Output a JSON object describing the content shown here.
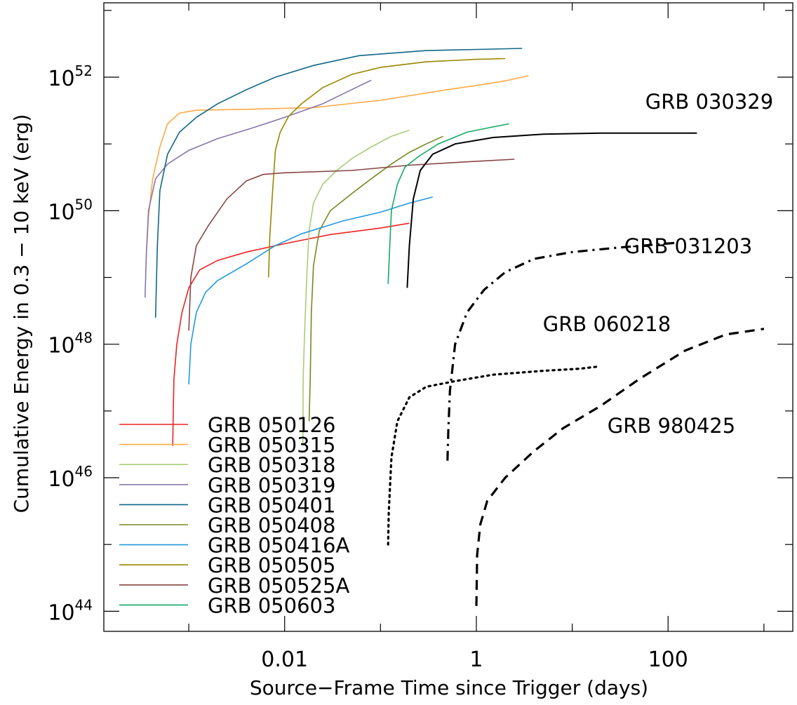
{
  "chart_data": {
    "type": "line",
    "xlabel": "Source−Frame Time since Trigger (days)",
    "ylabel": "Cumulative Energy in 0.3 − 10 keV (erg)",
    "x_scale": "log",
    "y_scale": "log",
    "xlim": [
      0.00013,
      2000
    ],
    "ylim": [
      5e+43,
      1.3e+53
    ],
    "x_tick_labels": [
      {
        "value": 0.01,
        "label": "0.01"
      },
      {
        "value": 1,
        "label": "1"
      },
      {
        "value": 100,
        "label": "100"
      }
    ],
    "y_tick_labels": [
      {
        "value": 1e+52,
        "base": "10",
        "exp": "52"
      },
      {
        "value": 1e+50,
        "base": "10",
        "exp": "50"
      },
      {
        "value": 1e+48,
        "base": "10",
        "exp": "48"
      },
      {
        "value": 1e+46,
        "base": "10",
        "exp": "46"
      },
      {
        "value": 1e+44,
        "base": "10",
        "exp": "44"
      }
    ],
    "legend_placement": "bottom-left",
    "series": [
      {
        "name": "GRB 050126",
        "color": "#ee2222",
        "style": "solid",
        "in_legend": true,
        "points": [
          [
            0.00068,
            3e+46
          ],
          [
            0.00069,
            1e+47
          ],
          [
            0.0007,
            3e+47
          ],
          [
            0.00075,
            1e+48
          ],
          [
            0.00085,
            3e+48
          ],
          [
            0.001,
            7e+48
          ],
          [
            0.0013,
            1.3e+49
          ],
          [
            0.002,
            1.8e+49
          ],
          [
            0.004,
            2.4e+49
          ],
          [
            0.01,
            3.2e+49
          ],
          [
            0.03,
            4.4e+49
          ],
          [
            0.1,
            5.5e+49
          ],
          [
            0.2,
            6.5e+49
          ]
        ]
      },
      {
        "name": "GRB 050315",
        "color": "#ffaa44",
        "style": "solid",
        "in_legend": true,
        "points": [
          [
            0.00036,
            2e+49
          ],
          [
            0.00038,
            8e+49
          ],
          [
            0.00042,
            3e+50
          ],
          [
            0.0005,
            9e+50
          ],
          [
            0.0006,
            2e+51
          ],
          [
            0.0008,
            2.9e+51
          ],
          [
            0.0012,
            3.2e+51
          ],
          [
            0.004,
            3.3e+51
          ],
          [
            0.02,
            3.5e+51
          ],
          [
            0.1,
            4.5e+51
          ],
          [
            0.5,
            6.5e+51
          ],
          [
            1,
            7.5e+51
          ],
          [
            2,
            8.8e+51
          ],
          [
            3.5,
            1.05e+52
          ]
        ]
      },
      {
        "name": "GRB 050318",
        "color": "#aacc77",
        "style": "solid",
        "in_legend": true,
        "points": [
          [
            0.0155,
            3e+46
          ],
          [
            0.0156,
            3e+47
          ],
          [
            0.016,
            1e+48
          ],
          [
            0.017,
            1e+49
          ],
          [
            0.018,
            5e+49
          ],
          [
            0.02,
            1.3e+50
          ],
          [
            0.025,
            2.5e+50
          ],
          [
            0.035,
            4e+50
          ],
          [
            0.05,
            6e+50
          ],
          [
            0.08,
            9e+50
          ],
          [
            0.13,
            1.3e+51
          ],
          [
            0.2,
            1.6e+51
          ]
        ]
      },
      {
        "name": "GRB 050319",
        "color": "#8877aa",
        "style": "solid",
        "in_legend": true,
        "points": [
          [
            0.00035,
            5e+48
          ],
          [
            0.00036,
            2e+49
          ],
          [
            0.00038,
            1e+50
          ],
          [
            0.00045,
            3e+50
          ],
          [
            0.0006,
            5e+50
          ],
          [
            0.001,
            8e+50
          ],
          [
            0.002,
            1.2e+51
          ],
          [
            0.005,
            1.8e+51
          ],
          [
            0.01,
            2.5e+51
          ],
          [
            0.025,
            4e+51
          ],
          [
            0.05,
            6.5e+51
          ],
          [
            0.08,
            9e+51
          ]
        ]
      },
      {
        "name": "GRB 050401",
        "color": "#116688",
        "style": "solid",
        "in_legend": true,
        "points": [
          [
            0.00045,
            2.5e+48
          ],
          [
            0.00047,
            3e+49
          ],
          [
            0.0005,
            2e+50
          ],
          [
            0.0006,
            7e+50
          ],
          [
            0.0008,
            1.5e+51
          ],
          [
            0.0012,
            2.5e+51
          ],
          [
            0.002,
            4e+51
          ],
          [
            0.004,
            6.5e+51
          ],
          [
            0.008,
            1e+52
          ],
          [
            0.02,
            1.5e+52
          ],
          [
            0.06,
            2.1e+52
          ],
          [
            0.3,
            2.5e+52
          ],
          [
            1,
            2.6e+52
          ],
          [
            3,
            2.7e+52
          ]
        ]
      },
      {
        "name": "GRB 050408",
        "color": "#778822",
        "style": "solid",
        "in_legend": true,
        "points": [
          [
            0.018,
            7e+46
          ],
          [
            0.0185,
            3e+47
          ],
          [
            0.019,
            3e+48
          ],
          [
            0.02,
            1.5e+49
          ],
          [
            0.023,
            5e+49
          ],
          [
            0.03,
            1e+50
          ],
          [
            0.05,
            1.8e+50
          ],
          [
            0.08,
            3e+50
          ],
          [
            0.13,
            5e+50
          ],
          [
            0.2,
            7.5e+50
          ],
          [
            0.3,
            1e+51
          ],
          [
            0.45,
            1.3e+51
          ]
        ]
      },
      {
        "name": "GRB 050416A",
        "color": "#2299dd",
        "style": "solid",
        "in_legend": true,
        "points": [
          [
            0.001,
            2.5e+47
          ],
          [
            0.00105,
            1e+48
          ],
          [
            0.0012,
            3e+48
          ],
          [
            0.0015,
            6e+48
          ],
          [
            0.002,
            9e+48
          ],
          [
            0.004,
            1.6e+49
          ],
          [
            0.008,
            3e+49
          ],
          [
            0.015,
            4.5e+49
          ],
          [
            0.04,
            7e+49
          ],
          [
            0.1,
            9.5e+49
          ],
          [
            0.2,
            1.3e+50
          ],
          [
            0.35,
            1.6e+50
          ]
        ]
      },
      {
        "name": "GRB 050505",
        "color": "#998800",
        "style": "solid",
        "in_legend": true,
        "points": [
          [
            0.0068,
            1e+49
          ],
          [
            0.007,
            4e+49
          ],
          [
            0.0075,
            2e+50
          ],
          [
            0.008,
            8e+50
          ],
          [
            0.009,
            1.5e+51
          ],
          [
            0.011,
            2.6e+51
          ],
          [
            0.015,
            4e+51
          ],
          [
            0.025,
            7e+51
          ],
          [
            0.05,
            1.1e+52
          ],
          [
            0.1,
            1.4e+52
          ],
          [
            0.3,
            1.7e+52
          ],
          [
            1,
            1.85e+52
          ],
          [
            2,
            1.9e+52
          ]
        ]
      },
      {
        "name": "GRB 050525A",
        "color": "#884444",
        "style": "solid",
        "in_legend": true,
        "points": [
          [
            0.001,
            1.6e+48
          ],
          [
            0.00105,
            1e+49
          ],
          [
            0.0012,
            3e+49
          ],
          [
            0.0016,
            6e+49
          ],
          [
            0.0025,
            1.5e+50
          ],
          [
            0.004,
            2.8e+50
          ],
          [
            0.006,
            3.5e+50
          ],
          [
            0.01,
            3.7e+50
          ],
          [
            0.05,
            4e+50
          ],
          [
            0.2,
            4.8e+50
          ],
          [
            1,
            5.5e+50
          ],
          [
            2.5,
            5.9e+50
          ]
        ]
      },
      {
        "name": "GRB 050603",
        "color": "#11aa66",
        "style": "solid",
        "in_legend": true,
        "points": [
          [
            0.12,
            8e+48
          ],
          [
            0.125,
            3e+49
          ],
          [
            0.13,
            1e+50
          ],
          [
            0.15,
            2.5e+50
          ],
          [
            0.18,
            4.5e+50
          ],
          [
            0.25,
            6.5e+50
          ],
          [
            0.4,
            1e+51
          ],
          [
            0.8,
            1.5e+51
          ],
          [
            1.5,
            1.8e+51
          ],
          [
            2.2,
            2e+51
          ]
        ]
      },
      {
        "name": "GRB 030329",
        "color": "#000000",
        "style": "solid",
        "in_legend": false,
        "points": [
          [
            0.19,
            7e+48
          ],
          [
            0.2,
            3e+49
          ],
          [
            0.22,
            1.5e+50
          ],
          [
            0.26,
            4e+50
          ],
          [
            0.35,
            7e+50
          ],
          [
            0.6,
            1e+51
          ],
          [
            1.5,
            1.25e+51
          ],
          [
            5,
            1.4e+51
          ],
          [
            20,
            1.45e+51
          ],
          [
            200,
            1.45e+51
          ]
        ]
      },
      {
        "name": "GRB 031203",
        "color": "#000000",
        "style": "dashdot",
        "in_legend": false,
        "points": [
          [
            0.5,
            1.8e+46
          ],
          [
            0.51,
            5e+46
          ],
          [
            0.53,
            2e+47
          ],
          [
            0.6,
            1e+48
          ],
          [
            0.8,
            3e+48
          ],
          [
            1.2,
            6.5e+48
          ],
          [
            2,
            1.2e+49
          ],
          [
            4,
            1.9e+49
          ],
          [
            10,
            2.4e+49
          ],
          [
            30,
            2.8e+49
          ],
          [
            120,
            3.3e+49
          ]
        ]
      },
      {
        "name": "GRB 060218",
        "color": "#000000",
        "style": "dotted",
        "in_legend": false,
        "points": [
          [
            0.12,
            1e+45
          ],
          [
            0.122,
            3e+45
          ],
          [
            0.13,
            2e+46
          ],
          [
            0.15,
            7e+46
          ],
          [
            0.2,
            1.6e+47
          ],
          [
            0.3,
            2.3e+47
          ],
          [
            0.6,
            2.8e+47
          ],
          [
            1.5,
            3.5e+47
          ],
          [
            5,
            4e+47
          ],
          [
            12,
            4.3e+47
          ],
          [
            18,
            4.6e+47
          ]
        ]
      },
      {
        "name": "GRB 980425",
        "color": "#000000",
        "style": "dashed",
        "in_legend": false,
        "points": [
          [
            1,
            1.2e+44
          ],
          [
            1.02,
            7e+44
          ],
          [
            1.1,
            2e+45
          ],
          [
            1.3,
            4.5e+45
          ],
          [
            2,
            1e+46
          ],
          [
            4,
            2.5e+46
          ],
          [
            8,
            5.5e+46
          ],
          [
            20,
            1.2e+47
          ],
          [
            50,
            3e+47
          ],
          [
            150,
            8e+47
          ],
          [
            400,
            1.4e+48
          ],
          [
            1000,
            1.7e+48
          ]
        ]
      }
    ],
    "annotations": [
      {
        "label": "GRB 030329"
      },
      {
        "label": "GRB 031203"
      },
      {
        "label": "GRB 060218"
      },
      {
        "label": "GRB 980425"
      }
    ]
  }
}
